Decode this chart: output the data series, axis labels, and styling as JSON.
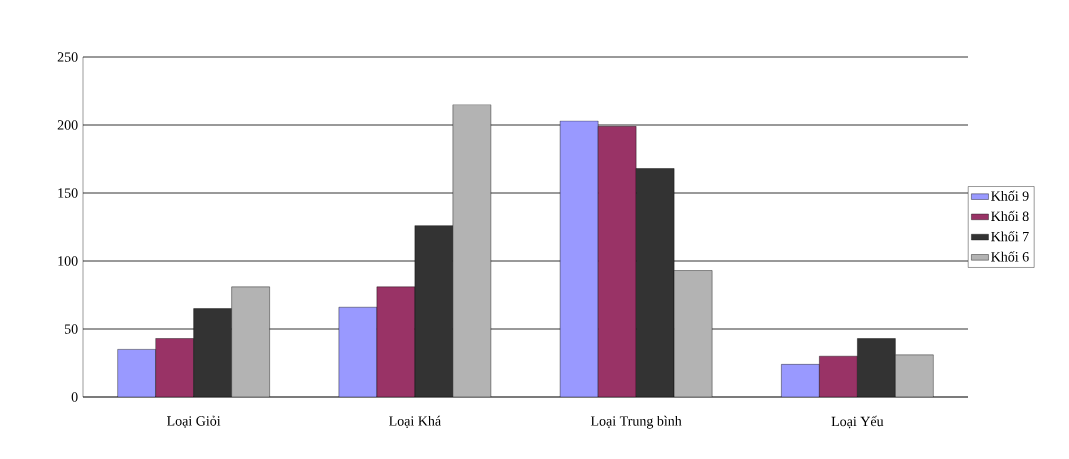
{
  "chart_data": {
    "type": "bar",
    "categories": [
      "Loại Giỏi",
      "Loại Khá",
      "Loại Trung bình",
      "Loại Yếu"
    ],
    "series": [
      {
        "name": "Khối 9",
        "color": "#9999ff",
        "values": [
          35,
          66,
          203,
          24
        ]
      },
      {
        "name": "Khối 8",
        "color": "#993366",
        "values": [
          43,
          81,
          199,
          30
        ]
      },
      {
        "name": "Khối 7",
        "color": "#333333",
        "values": [
          65,
          126,
          168,
          43
        ]
      },
      {
        "name": "Khối 6",
        "color": "#b3b3b3",
        "values": [
          81,
          215,
          93,
          31
        ]
      }
    ],
    "ylim": [
      0,
      250
    ],
    "yticks": [
      0,
      50,
      100,
      150,
      200,
      250
    ],
    "grid": "y",
    "legend": "right"
  }
}
